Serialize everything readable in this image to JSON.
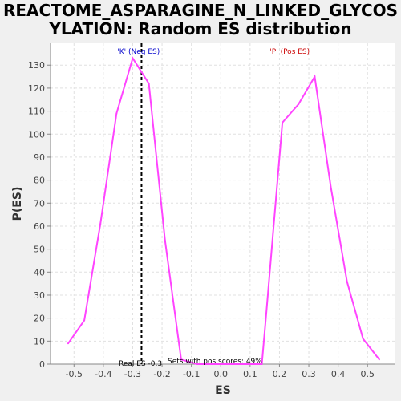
{
  "chart_data": {
    "type": "line",
    "title_lines": [
      "REACTOME_ASPARAGINE_N_LINKED_GLYCOS",
      "YLATION: Random ES distribution"
    ],
    "xlabel": "ES",
    "ylabel": "P(ES)",
    "xlim": [
      -0.58,
      0.595
    ],
    "ylim": [
      0,
      139.5
    ],
    "x_ticks": [
      "-0.5",
      "-0.4",
      "-0.3",
      "-0.2",
      "-0.1",
      "0.0",
      "0.1",
      "0.2",
      "0.3",
      "0.4",
      "0.5"
    ],
    "y_ticks": [
      "0",
      "10",
      "20",
      "30",
      "40",
      "50",
      "60",
      "70",
      "80",
      "90",
      "100",
      "110",
      "120",
      "130"
    ],
    "grid": true,
    "series": [
      {
        "color": "#ff44ff",
        "points": [
          [
            -0.52,
            9
          ],
          [
            -0.465,
            19
          ],
          [
            -0.41,
            61
          ],
          [
            -0.355,
            109
          ],
          [
            -0.3,
            133
          ],
          [
            -0.245,
            122
          ],
          [
            -0.19,
            54
          ],
          [
            -0.135,
            2
          ],
          [
            -0.08,
            0
          ],
          [
            -0.025,
            0
          ],
          [
            0.03,
            0
          ],
          [
            0.085,
            0
          ],
          [
            0.14,
            0
          ],
          [
            0.155,
            22
          ],
          [
            0.21,
            105
          ],
          [
            0.265,
            113
          ],
          [
            0.32,
            125
          ],
          [
            0.375,
            77
          ],
          [
            0.43,
            36
          ],
          [
            0.485,
            11
          ],
          [
            0.54,
            2
          ]
        ]
      }
    ],
    "real_es": -0.27,
    "annotations": {
      "neg_label": "'K' (Neg ES)",
      "neg_color": "#0000cc",
      "pos_label": "'P' (Pos ES)",
      "pos_color": "#cc0000",
      "real_es_label": "Real ES -0.3",
      "pos_scores_label": "Sets with pos scores: 49%"
    }
  }
}
